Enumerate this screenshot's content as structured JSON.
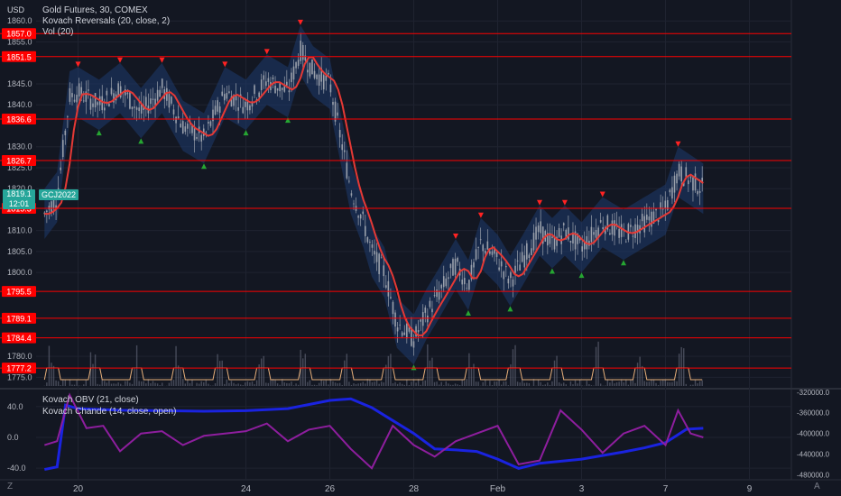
{
  "header": {
    "currency": "USD",
    "title": "Gold Futures, 30, COMEX",
    "indicator1": "Kovach Reversals (20, close, 2)",
    "indicator2": "Vol (20)",
    "indicator3": "Kovach OBV (21, close)",
    "indicator4": "Kovach Chande (14, close, open)",
    "symbol_badge": "GCJ2022",
    "last_price": "1819.1",
    "countdown": "12:01"
  },
  "footer": {
    "left_corner": "Z",
    "right_corner": "A"
  },
  "colors": {
    "background": "#131722",
    "level_line": "#ff0000",
    "candle": "#9aa0ab",
    "band_fill": "#1e3a6e",
    "ma_line": "#e53935",
    "volume_ma": "#e8b07a",
    "obv": "#1a23e0",
    "chande": "#8e1e9e",
    "up_marker": "#26a632",
    "down_marker": "#ff2222"
  },
  "chart_data": [
    {
      "type": "line",
      "title": "Gold Futures, 30, COMEX",
      "ylabel": "USD",
      "ylim": [
        1772.5,
        1865
      ],
      "y_ticks": [
        "1775.0",
        "1780.0",
        "1800.0",
        "1805.0",
        "1810.0",
        "1820.0",
        "1825.0",
        "1830.0",
        "1840.0",
        "1845.0",
        "1855.0",
        "1860.0"
      ],
      "x_tick_labels": [
        "20",
        "24",
        "26",
        "28",
        "Feb",
        "3",
        "7",
        "9"
      ],
      "x_tick_pos": [
        1,
        5,
        7,
        9,
        11,
        13,
        15,
        17
      ],
      "xlim": [
        0,
        18
      ],
      "price_levels": [
        "1857.0",
        "1851.5",
        "1836.6",
        "1826.7",
        "1815.3",
        "1795.5",
        "1789.1",
        "1784.4",
        "1777.2"
      ],
      "series": [
        {
          "name": "",
          "x": [
            0.2,
            0.5,
            0.8,
            1.0,
            1.5,
            2.0,
            2.5,
            3.0,
            3.5,
            4.0,
            4.5,
            5.0,
            5.5,
            6.0,
            6.3,
            6.6,
            7.0,
            7.5,
            7.8,
            8.0,
            8.3,
            8.6,
            9.0,
            9.3,
            9.6,
            10.0,
            10.3,
            10.6,
            11.0,
            11.3,
            11.6,
            12.0,
            12.3,
            12.6,
            13.0,
            13.5,
            14.0,
            14.5,
            15.0,
            15.3,
            15.6,
            15.9
          ],
          "values": [
            1814,
            1818,
            1842,
            1843,
            1840,
            1844,
            1838,
            1844,
            1835,
            1832,
            1843,
            1840,
            1846,
            1843,
            1853,
            1848,
            1845,
            1820,
            1812,
            1805,
            1800,
            1788,
            1784,
            1790,
            1795,
            1802,
            1797,
            1807,
            1803,
            1798,
            1803,
            1810,
            1807,
            1810,
            1806,
            1812,
            1809,
            1812,
            1815,
            1824,
            1822,
            1820
          ]
        }
      ]
    },
    {
      "type": "line",
      "title": "Kovach OBV (21, close) / Kovach Chande (14, close, open)",
      "ylim_left": [
        -55,
        62
      ],
      "y_ticks_left": [
        "-40.0",
        "0.0",
        "40.0"
      ],
      "ylim_right": [
        -490000,
        -315000
      ],
      "y_ticks_right": [
        "-320000.0",
        "-360000.0",
        "-400000.0",
        "-440000.0",
        "-480000.0"
      ],
      "series": [
        {
          "name": "Kovach OBV (21, close)",
          "x": [
            0.2,
            0.5,
            0.7,
            1.0,
            2.0,
            3.0,
            4.0,
            5.0,
            6.0,
            7.0,
            7.5,
            8.0,
            8.5,
            9.0,
            9.5,
            10.0,
            10.5,
            11.0,
            11.5,
            12.0,
            13.0,
            14.0,
            14.5,
            15.0,
            15.5,
            15.9
          ],
          "values": [
            -470000,
            -465000,
            -345000,
            -352000,
            -355000,
            -356000,
            -357000,
            -356000,
            -352000,
            -336000,
            -333000,
            -350000,
            -375000,
            -400000,
            -430000,
            -432000,
            -435000,
            -450000,
            -468000,
            -458000,
            -450000,
            -436000,
            -428000,
            -418000,
            -392000,
            -390000
          ]
        },
        {
          "name": "Kovach Chande (14, close, open)",
          "x": [
            0.2,
            0.5,
            0.8,
            1.2,
            1.6,
            2.0,
            2.5,
            3.0,
            3.5,
            4.0,
            4.5,
            5.0,
            5.5,
            6.0,
            6.5,
            7.0,
            7.5,
            8.0,
            8.5,
            9.0,
            9.5,
            10.0,
            10.5,
            11.0,
            11.5,
            12.0,
            12.5,
            13.0,
            13.5,
            14.0,
            14.5,
            15.0,
            15.3,
            15.6,
            15.9
          ],
          "values": [
            -10,
            -5,
            55,
            12,
            15,
            -18,
            5,
            8,
            -10,
            2,
            5,
            8,
            18,
            -5,
            10,
            15,
            -15,
            -40,
            15,
            -10,
            -25,
            -5,
            5,
            15,
            -35,
            -30,
            35,
            10,
            -20,
            5,
            15,
            -10,
            35,
            5,
            0
          ]
        }
      ]
    }
  ]
}
